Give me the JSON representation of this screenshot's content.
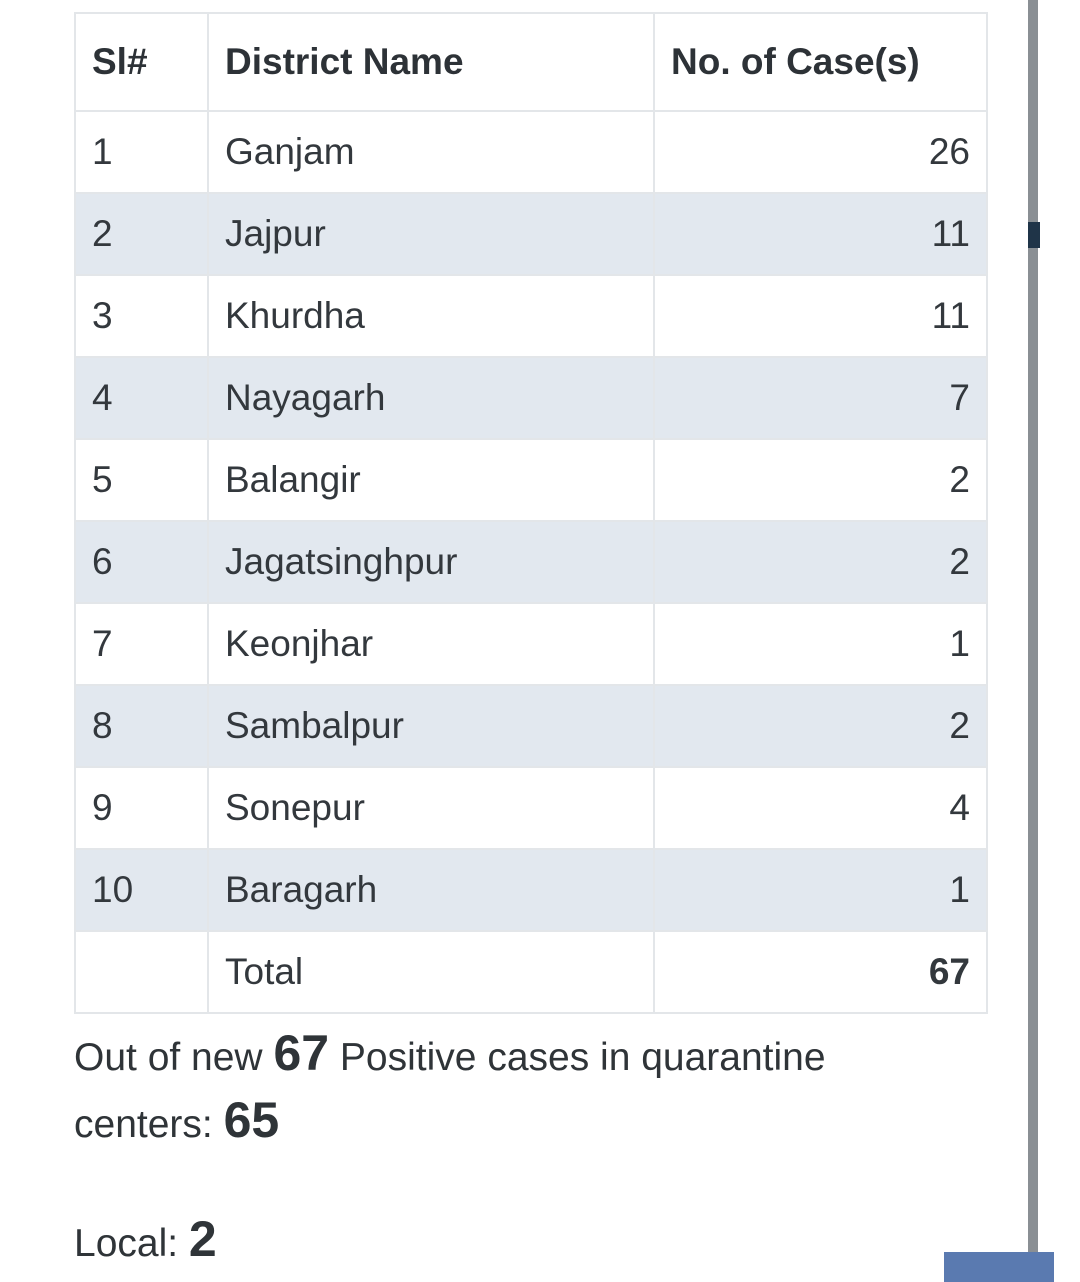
{
  "table": {
    "headers": [
      "Sl#",
      "District Name",
      "No. of Case(s)"
    ],
    "rows": [
      {
        "sl": "1",
        "district": "Ganjam",
        "cases": "26"
      },
      {
        "sl": "2",
        "district": "Jajpur",
        "cases": "11"
      },
      {
        "sl": "3",
        "district": "Khurdha",
        "cases": "11"
      },
      {
        "sl": "4",
        "district": "Nayagarh",
        "cases": "7"
      },
      {
        "sl": "5",
        "district": "Balangir",
        "cases": "2"
      },
      {
        "sl": "6",
        "district": "Jagatsinghpur",
        "cases": "2"
      },
      {
        "sl": "7",
        "district": "Keonjhar",
        "cases": "1"
      },
      {
        "sl": "8",
        "district": "Sambalpur",
        "cases": "2"
      },
      {
        "sl": "9",
        "district": "Sonepur",
        "cases": "4"
      },
      {
        "sl": "10",
        "district": "Baragarh",
        "cases": "1"
      }
    ],
    "total": {
      "label": "Total",
      "value": "67"
    }
  },
  "summary": {
    "prefix": "Out of new",
    "new_count": "67",
    "middle": "Positive cases in quarantine centers:",
    "quarantine_count": "65"
  },
  "local": {
    "label": "Local:",
    "count": "2"
  },
  "colors": {
    "row_alt": "#e2e8ef",
    "border": "#e3e6e9",
    "text": "#2f3438"
  }
}
